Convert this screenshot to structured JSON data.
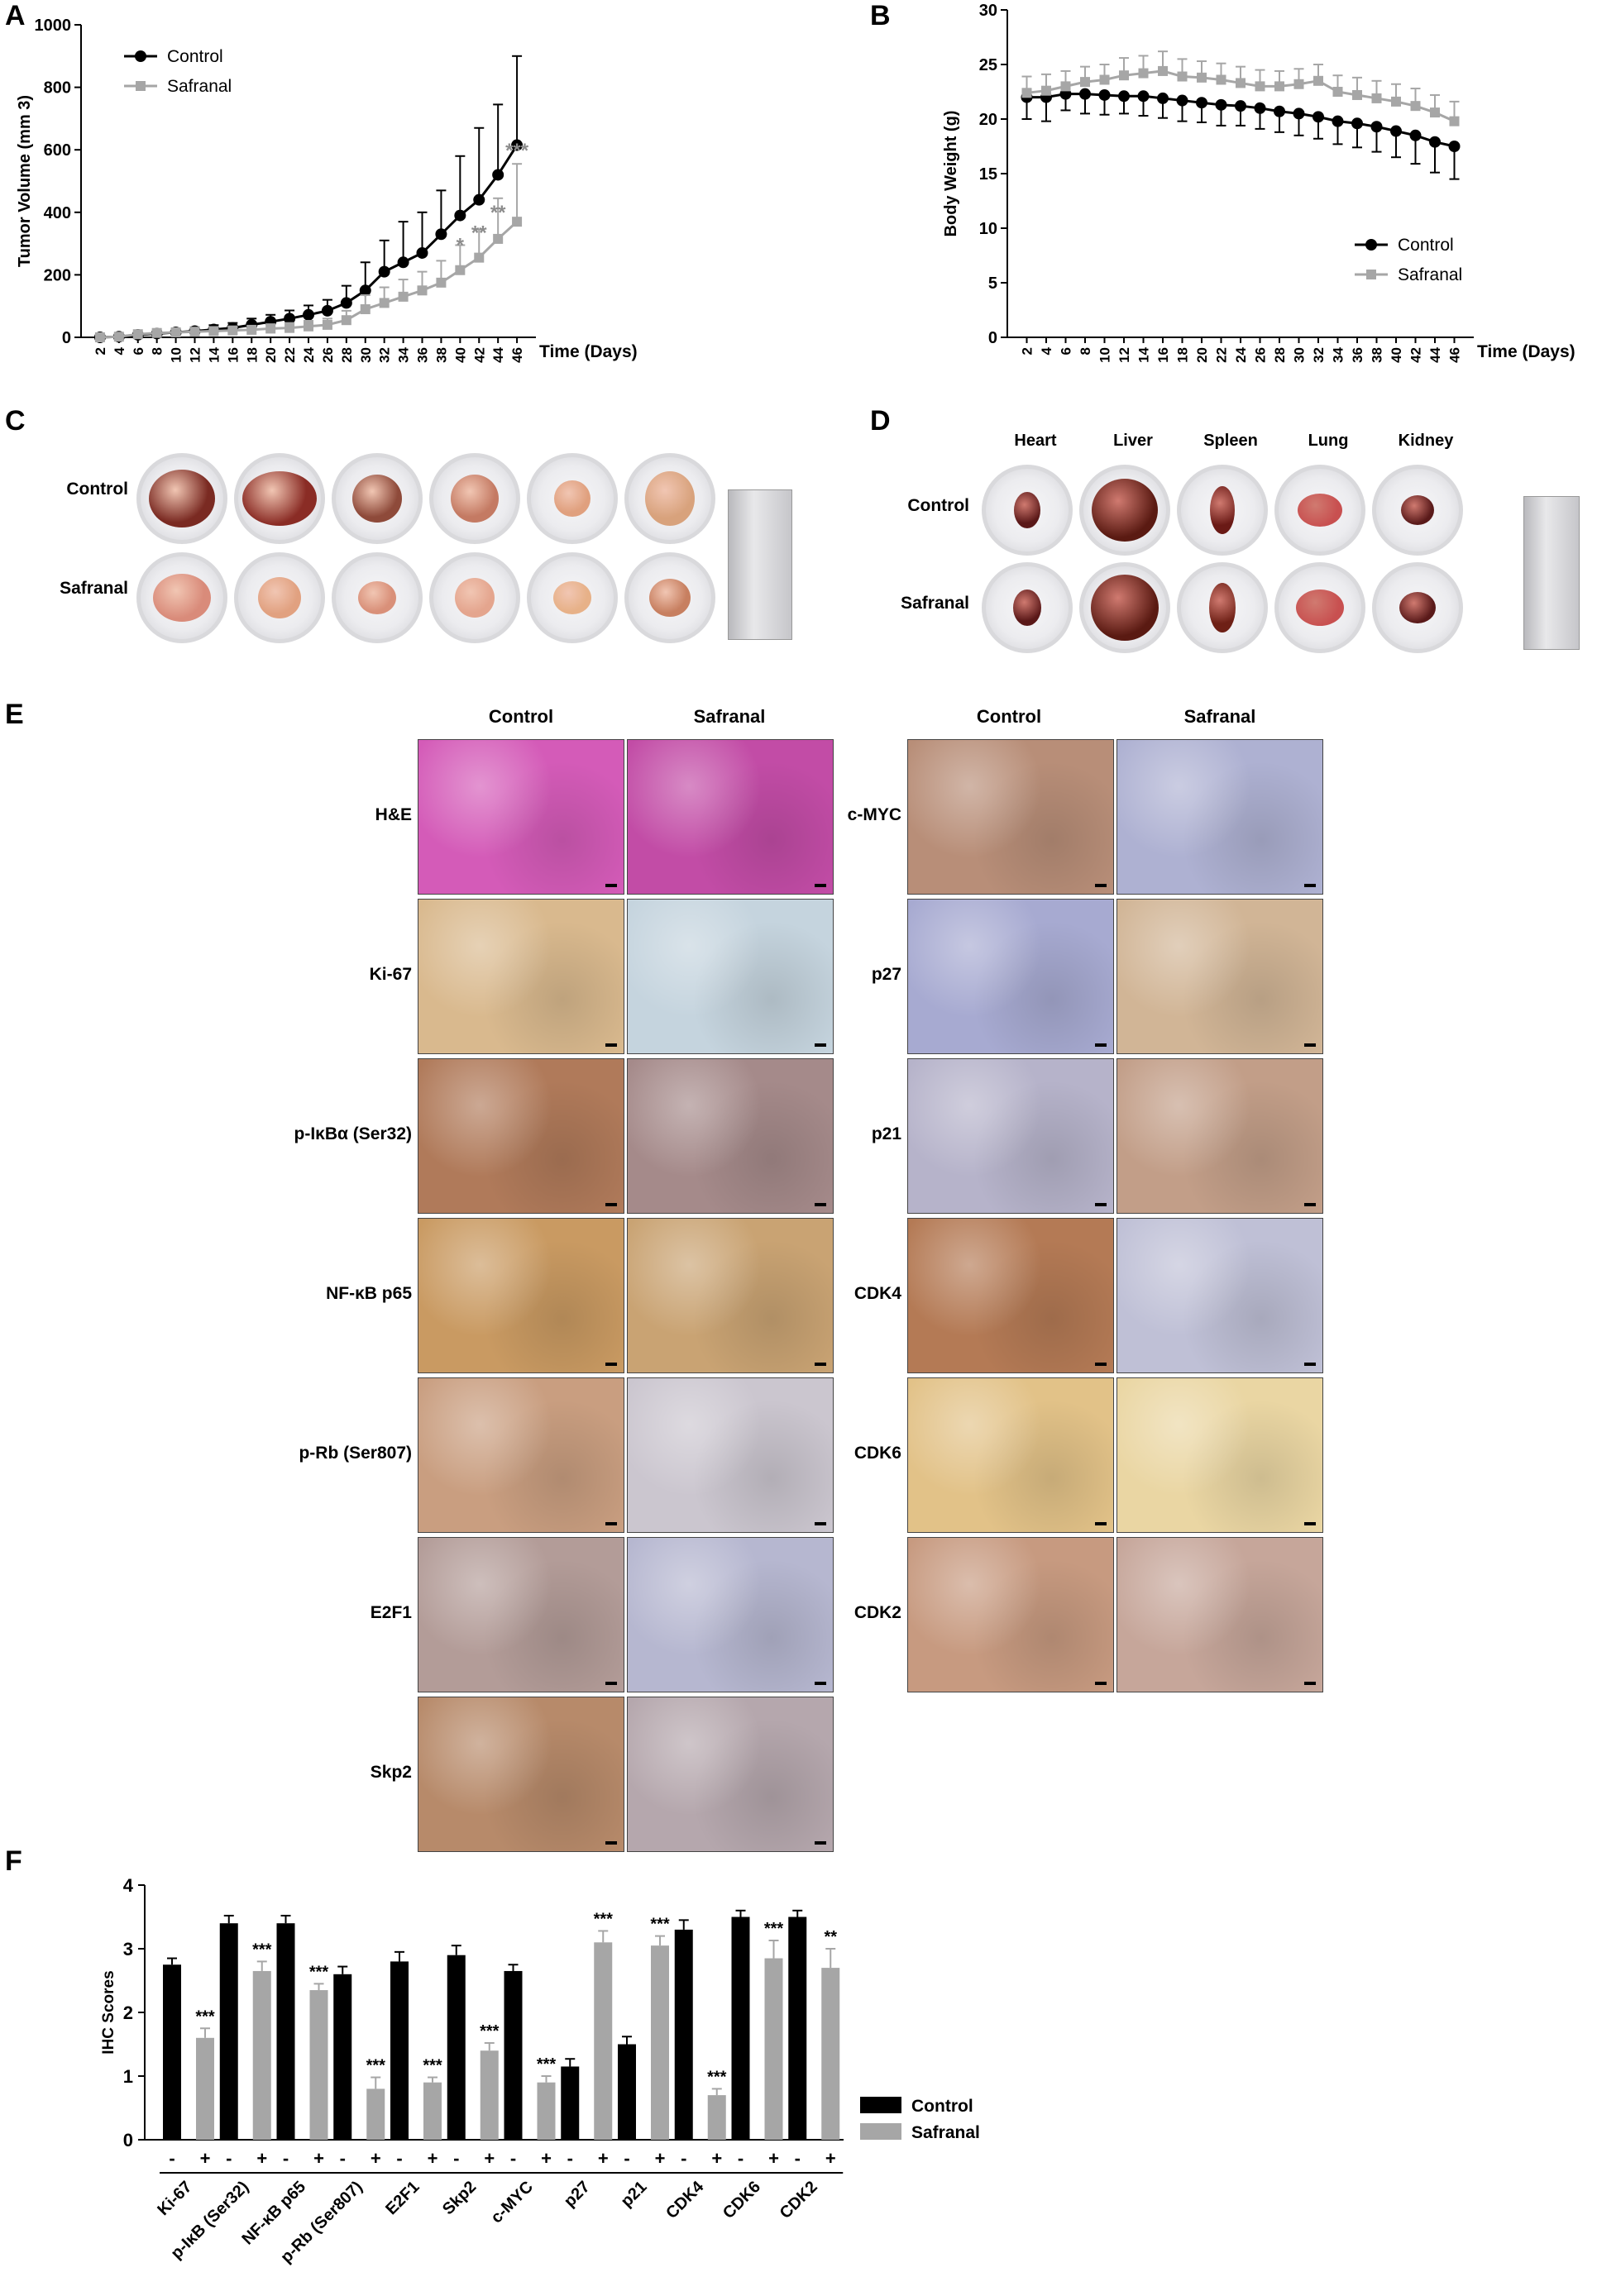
{
  "panels": {
    "A": "A",
    "B": "B",
    "C": "C",
    "D": "D",
    "E": "E",
    "F": "F"
  },
  "panel_c": {
    "row_labels": [
      "Control",
      "Safranal"
    ]
  },
  "panel_d": {
    "organs": [
      "Heart",
      "Liver",
      "Spleen",
      "Lung",
      "Kidney"
    ],
    "row_labels": [
      "Control",
      "Safranal"
    ]
  },
  "panel_e": {
    "col_headers_left": [
      "Control",
      "Safranal"
    ],
    "col_headers_right": [
      "Control",
      "Safranal"
    ],
    "rows_left": [
      {
        "label": "H&E",
        "colors": [
          "#d45bb8",
          "#c24ca6"
        ]
      },
      {
        "label": "Ki-67",
        "colors": [
          "#d9b98e",
          "#c5d4de"
        ]
      },
      {
        "label": "p-IκBα (Ser32)",
        "colors": [
          "#b07a5a",
          "#a58a8a"
        ]
      },
      {
        "label": "NF-κB p65",
        "colors": [
          "#c99a62",
          "#c9a373"
        ]
      },
      {
        "label": "p-Rb (Ser807)",
        "colors": [
          "#c99e80",
          "#cbc6cf"
        ]
      },
      {
        "label": "E2F1",
        "colors": [
          "#b39c98",
          "#b6b7d0"
        ]
      },
      {
        "label": "Skp2",
        "colors": [
          "#b78a6a",
          "#b5a7ad"
        ]
      }
    ],
    "rows_right": [
      {
        "label": "c-MYC",
        "colors": [
          "#b88e78",
          "#aeb1d2"
        ]
      },
      {
        "label": "p27",
        "colors": [
          "#a7aad1",
          "#d1b596"
        ]
      },
      {
        "label": "p21",
        "colors": [
          "#b6b3ca",
          "#c29e88"
        ]
      },
      {
        "label": "CDK4",
        "colors": [
          "#b47a55",
          "#bfc0d6"
        ]
      },
      {
        "label": "CDK6",
        "colors": [
          "#e2c288",
          "#ead6a3"
        ]
      },
      {
        "label": "CDK2",
        "colors": [
          "#c79a80",
          "#c6a69a"
        ]
      }
    ]
  },
  "chart_data": [
    {
      "type": "line",
      "panel": "A",
      "ylabel": "Tumor Volume (mm 3)",
      "xlabel": "Time (Days)",
      "ylim": [
        0,
        1000
      ],
      "yticks": [
        0,
        200,
        400,
        600,
        800,
        1000
      ],
      "x": [
        2,
        4,
        6,
        8,
        10,
        12,
        14,
        16,
        18,
        20,
        22,
        24,
        26,
        28,
        30,
        32,
        34,
        36,
        38,
        40,
        42,
        44,
        46
      ],
      "series": [
        {
          "name": "Control",
          "color": "#000000",
          "marker": "circle",
          "values": [
            0,
            2,
            8,
            12,
            16,
            20,
            25,
            30,
            40,
            50,
            60,
            72,
            85,
            110,
            150,
            210,
            240,
            270,
            330,
            390,
            440,
            520,
            615
          ],
          "errors": [
            0,
            4,
            6,
            8,
            10,
            12,
            14,
            16,
            20,
            22,
            26,
            30,
            35,
            55,
            90,
            100,
            130,
            130,
            140,
            190,
            230,
            225,
            285
          ]
        },
        {
          "name": "Safranal",
          "color": "#a6a6a6",
          "marker": "square",
          "values": [
            0,
            2,
            10,
            14,
            16,
            18,
            20,
            22,
            24,
            28,
            30,
            35,
            40,
            55,
            90,
            110,
            130,
            150,
            175,
            215,
            255,
            315,
            370
          ],
          "errors": [
            0,
            4,
            6,
            8,
            8,
            10,
            10,
            12,
            12,
            14,
            16,
            18,
            20,
            30,
            45,
            50,
            55,
            60,
            70,
            80,
            90,
            130,
            185
          ]
        }
      ],
      "annotations": [
        {
          "x": 40,
          "text": "*"
        },
        {
          "x": 42,
          "text": "**"
        },
        {
          "x": 44,
          "text": "**"
        },
        {
          "x": 46,
          "text": "***"
        }
      ],
      "legend": "top-left"
    },
    {
      "type": "line",
      "panel": "B",
      "ylabel": "Body Weight (g)",
      "xlabel": "Time (Days)",
      "ylim": [
        0,
        30
      ],
      "yticks": [
        0,
        5,
        10,
        15,
        20,
        25,
        30
      ],
      "x": [
        2,
        4,
        6,
        8,
        10,
        12,
        14,
        16,
        18,
        20,
        22,
        24,
        26,
        28,
        30,
        32,
        34,
        36,
        38,
        40,
        42,
        44,
        46
      ],
      "series": [
        {
          "name": "Control",
          "color": "#000000",
          "marker": "circle",
          "values": [
            22.0,
            22.0,
            22.3,
            22.3,
            22.2,
            22.1,
            22.1,
            21.9,
            21.7,
            21.5,
            21.3,
            21.2,
            21.0,
            20.7,
            20.5,
            20.2,
            19.8,
            19.6,
            19.3,
            18.9,
            18.5,
            17.9,
            17.5
          ],
          "errors": [
            2.0,
            2.2,
            1.5,
            1.8,
            1.8,
            1.6,
            1.8,
            1.8,
            1.9,
            1.8,
            1.9,
            1.8,
            1.9,
            1.9,
            2.0,
            2.0,
            2.1,
            2.2,
            2.3,
            2.4,
            2.6,
            2.8,
            3.0
          ]
        },
        {
          "name": "Safranal",
          "color": "#a6a6a6",
          "marker": "square",
          "values": [
            22.4,
            22.6,
            23.0,
            23.4,
            23.6,
            24.0,
            24.2,
            24.4,
            23.9,
            23.8,
            23.6,
            23.3,
            23.0,
            23.0,
            23.2,
            23.5,
            22.5,
            22.2,
            21.9,
            21.6,
            21.2,
            20.6,
            19.8
          ],
          "errors": [
            1.5,
            1.5,
            1.4,
            1.4,
            1.4,
            1.6,
            1.6,
            1.8,
            1.6,
            1.5,
            1.5,
            1.5,
            1.5,
            1.4,
            1.4,
            1.5,
            1.5,
            1.6,
            1.6,
            1.6,
            1.6,
            1.6,
            1.8
          ]
        }
      ],
      "legend": "bottom-right"
    },
    {
      "type": "bar",
      "panel": "F",
      "ylabel": "IHC Scores",
      "ylim": [
        0,
        4
      ],
      "yticks": [
        0,
        1,
        2,
        3,
        4
      ],
      "categories": [
        "Ki-67",
        "p-IκB (Ser32)",
        "NF-κB p65",
        "p-Rb (Ser807)",
        "E2F1",
        "Skp2",
        "c-MYC",
        "p27",
        "p21",
        "CDK4",
        "CDK6",
        "CDK2"
      ],
      "treatment_marks": [
        "-",
        "+"
      ],
      "series": [
        {
          "name": "Control",
          "color": "#000000",
          "values": [
            2.75,
            3.4,
            3.4,
            2.6,
            2.8,
            2.9,
            2.65,
            1.15,
            1.5,
            3.3,
            3.5,
            3.5
          ],
          "errors": [
            0.1,
            0.12,
            0.12,
            0.12,
            0.15,
            0.15,
            0.1,
            0.12,
            0.12,
            0.15,
            0.1,
            0.1
          ]
        },
        {
          "name": "Safranal",
          "color": "#a6a6a6",
          "values": [
            1.6,
            2.65,
            2.35,
            0.8,
            0.9,
            1.4,
            0.9,
            3.1,
            3.05,
            0.7,
            2.85,
            2.7
          ],
          "errors": [
            0.15,
            0.15,
            0.1,
            0.18,
            0.08,
            0.12,
            0.1,
            0.18,
            0.15,
            0.1,
            0.28,
            0.3
          ]
        }
      ],
      "annotations": [
        "***",
        "***",
        "***",
        "***",
        "***",
        "***",
        "***",
        "***",
        "***",
        "***",
        "***",
        "**"
      ],
      "legend": "right"
    }
  ]
}
